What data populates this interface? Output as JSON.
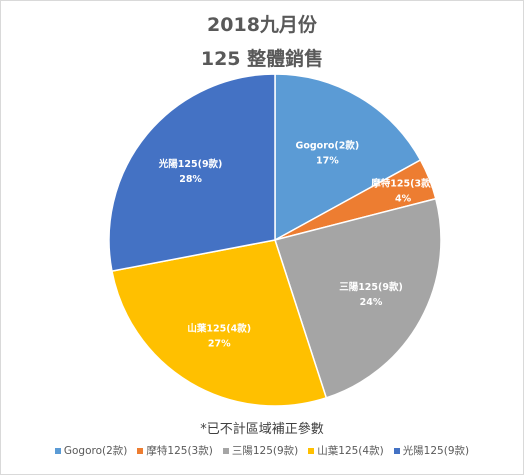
{
  "chart_data": {
    "type": "pie",
    "title": "2018九月份",
    "subtitle": "125 整體銷售",
    "note": "*已不計區域補正參數",
    "legend_position": "bottom",
    "slices": [
      {
        "name": "Gogoro(2款)",
        "value": 17,
        "label": "17%",
        "color": "#5B9BD5"
      },
      {
        "name": "摩特125(3款)",
        "value": 4,
        "label": "4%",
        "color": "#ED7D31"
      },
      {
        "name": "三陽125(9款)",
        "value": 24,
        "label": "24%",
        "color": "#A5A5A5"
      },
      {
        "name": "山葉125(4款)",
        "value": 27,
        "label": "27%",
        "color": "#FFC000"
      },
      {
        "name": "光陽125(9款)",
        "value": 28,
        "label": "28%",
        "color": "#4472C4"
      }
    ]
  }
}
